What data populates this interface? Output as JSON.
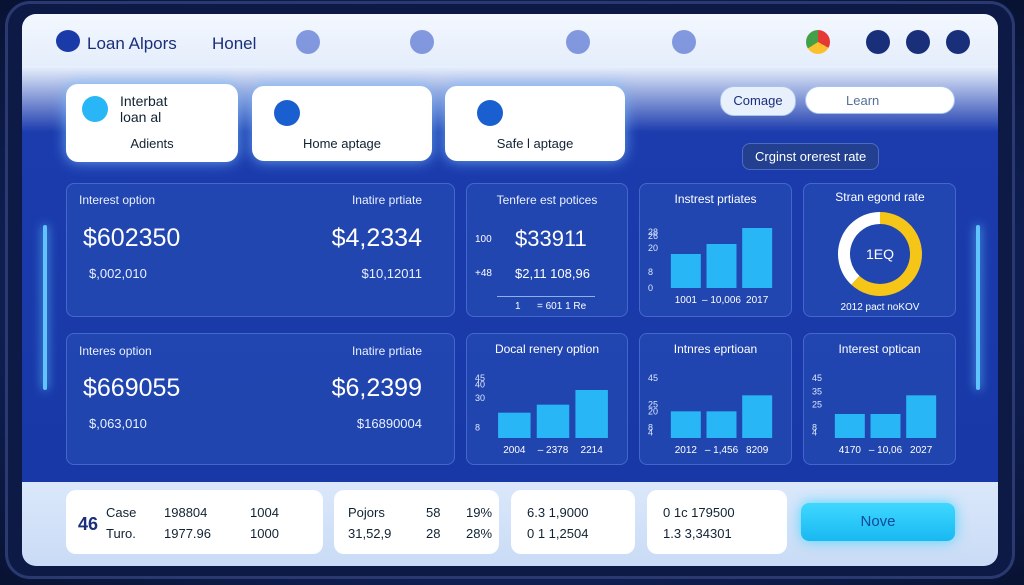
{
  "header": {
    "brand": "Loan Alpors",
    "nav": "Honel"
  },
  "cards": [
    {
      "title_lines": [
        "Interbat",
        "loan al"
      ],
      "label": "Adients"
    },
    {
      "label": "Home aptage"
    },
    {
      "label": "Safe l aptage"
    }
  ],
  "tooltip": "Crginst orerest rate",
  "summary": [
    {
      "left": {
        "label": "Interest option",
        "value": "$602350",
        "sub": "$,002,010"
      },
      "right": {
        "label": "Inatire prtiate",
        "value": "$4,2334",
        "sub": "$10,12011"
      }
    },
    {
      "left": {
        "label": "Interes option",
        "value": "$669055",
        "sub": "$,063,010"
      },
      "right": {
        "label": "Inatire prtiate",
        "value": "$6,2399",
        "sub": "$16890004"
      }
    }
  ],
  "rates_panel": {
    "title": "Tenfere est potices",
    "rows": [
      [
        "100",
        "$33911"
      ],
      [
        "+48",
        "$2,11 108,96"
      ]
    ],
    "footer": [
      "1",
      "= 601 1 Re"
    ]
  },
  "charts": [
    {
      "type": "bar",
      "title": "Instrest prtiates",
      "ylim": [
        0,
        30
      ],
      "yticks": [
        28,
        26,
        20,
        8,
        0
      ],
      "categories": [
        "1001",
        "– 10,006",
        "2017"
      ],
      "values": [
        17,
        22,
        30
      ],
      "color": "#29b6f6"
    },
    {
      "type": "bar",
      "title": "Docal renery option",
      "ylim": [
        0,
        45
      ],
      "yticks": [
        45,
        40,
        30,
        8
      ],
      "categories": [
        "2004",
        "– 2378",
        "2214"
      ],
      "values": [
        19,
        25,
        36
      ],
      "color": "#29b6f6"
    },
    {
      "type": "bar",
      "title": "Intnres eprtioan",
      "ylim": [
        0,
        45
      ],
      "yticks": [
        45,
        25,
        20,
        8,
        4
      ],
      "categories": [
        "2012",
        "– 1,456",
        "8209"
      ],
      "values": [
        20,
        20,
        32
      ],
      "color": "#29b6f6"
    },
    {
      "type": "bar",
      "title": "Interest optican",
      "ylim": [
        0,
        45
      ],
      "yticks": [
        45,
        35,
        25,
        8,
        4
      ],
      "categories": [
        "4170",
        "– 10,06",
        "2027"
      ],
      "values": [
        18,
        18,
        32
      ],
      "color": "#29b6f6"
    }
  ],
  "donut": {
    "type": "pie",
    "title": "Stran egond rate",
    "center": "1EQ",
    "footer": "2012 pact noKOV",
    "values": [
      62,
      38
    ],
    "colors": [
      "#f5c518",
      "#ffffff"
    ]
  },
  "footer_cards": [
    {
      "big": "46",
      "rows": [
        [
          "Case",
          "198804",
          "1004"
        ],
        [
          "Turo.",
          "1977.96",
          "1000"
        ]
      ]
    },
    {
      "rows": [
        [
          "Pojors",
          "58",
          "19%"
        ],
        [
          "31,52,9",
          "28",
          "28%"
        ]
      ]
    },
    {
      "rows": [
        [
          "6.3 1,9000"
        ],
        [
          "0 1 1,2504"
        ]
      ]
    },
    {
      "rows": [
        [
          "0 1c 179500"
        ],
        [
          "1.3 3,34301"
        ]
      ]
    }
  ],
  "button": "Nove"
}
